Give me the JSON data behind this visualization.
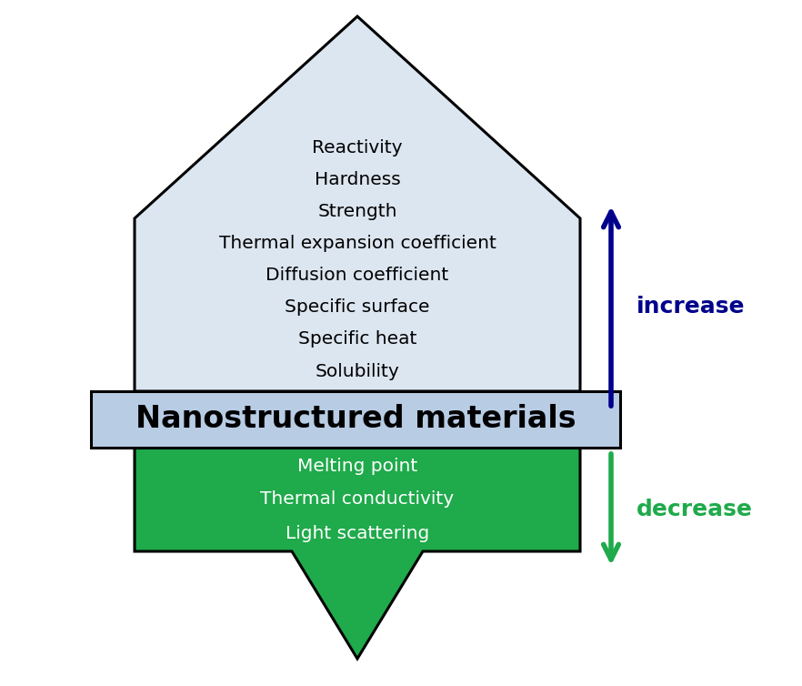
{
  "bg_color": "#ffffff",
  "house_fill": "#dce6f1",
  "house_edge": "#000000",
  "banner_fill": "#b8cce4",
  "banner_edge": "#000000",
  "arrow_down_fill": "#1faa4b",
  "arrow_down_edge": "#000000",
  "increase_arrow_color": "#00008B",
  "decrease_arrow_color": "#1faa4b",
  "banner_text": "Nanostructured materials",
  "banner_text_color": "#000000",
  "increase_label": "increase",
  "decrease_label": "decrease",
  "increase_items": [
    "Reactivity",
    "Hardness",
    "Strength",
    "Thermal expansion coefficient",
    "Diffusion coefficient",
    "Specific surface",
    "Specific heat",
    "Solubility"
  ],
  "decrease_items": [
    "Melting point",
    "Thermal conductivity",
    "Light scattering"
  ],
  "increase_text_color": "#000000",
  "decrease_text_color": "#ffffff",
  "increase_label_color": "#00008B",
  "decrease_label_color": "#1faa4b",
  "figsize": [
    8.82,
    7.54
  ],
  "dpi": 100
}
